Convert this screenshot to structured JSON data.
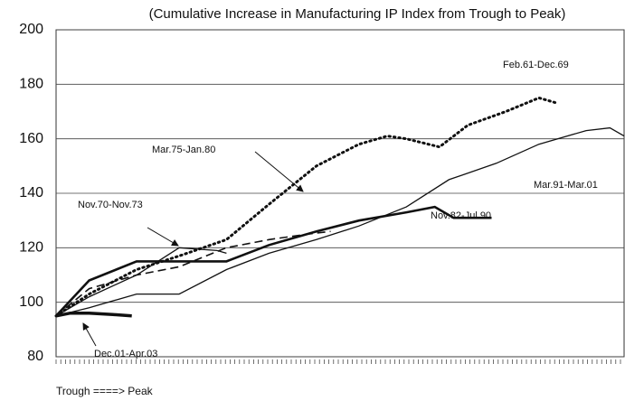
{
  "chart_data": {
    "type": "line",
    "title": "(Cumulative Increase in Manufacturing IP Index from Trough to Peak)",
    "x_label": "Trough ====> Peak",
    "xlim": [
      0,
      120
    ],
    "ylim": [
      80,
      200
    ],
    "yticks": [
      80,
      100,
      120,
      140,
      160,
      180,
      200
    ],
    "grid": true,
    "series": [
      {
        "name": "Feb.61-Dec.69",
        "color": "#111111",
        "style": "dotted",
        "width": 3,
        "x": [
          0,
          7,
          17,
          26,
          36,
          45,
          55,
          64,
          70,
          74,
          81,
          87,
          95,
          102,
          106
        ],
        "values": [
          95,
          103,
          112,
          117,
          123,
          136,
          150,
          158,
          161,
          160,
          157,
          165,
          170,
          175,
          173
        ]
      },
      {
        "name": "Mar.91-Mar.01",
        "color": "#111111",
        "style": "solid",
        "width": 1.3,
        "x": [
          0,
          7,
          17,
          26,
          36,
          45,
          55,
          64,
          74,
          83,
          93,
          102,
          112,
          117,
          120
        ],
        "values": [
          95,
          98,
          103,
          103,
          112,
          118,
          123,
          128,
          135,
          145,
          151,
          158,
          163,
          164,
          161
        ]
      },
      {
        "name": "Nov.82-Jul.90",
        "color": "#111111",
        "style": "solid",
        "width": 2.6,
        "x": [
          0,
          7,
          17,
          26,
          36,
          45,
          55,
          64,
          74,
          80,
          84,
          92
        ],
        "values": [
          95,
          108,
          115,
          115,
          115,
          121,
          126,
          130,
          133,
          135,
          131,
          131
        ]
      },
      {
        "name": "Mar.75-Jan.80",
        "color": "#111111",
        "style": "dashed",
        "width": 1.6,
        "x": [
          0,
          7,
          17,
          26,
          36,
          45,
          53,
          58
        ],
        "values": [
          95,
          105,
          110,
          113,
          120,
          123,
          125,
          126
        ]
      },
      {
        "name": "Nov.70-Nov.73",
        "color": "#111111",
        "style": "solid",
        "width": 1.3,
        "x": [
          0,
          7,
          17,
          26,
          34,
          36
        ],
        "values": [
          95,
          102,
          110,
          120,
          119,
          118
        ]
      },
      {
        "name": "Dec.01-Apr.03",
        "color": "#111111",
        "style": "solid",
        "width": 3.5,
        "x": [
          0,
          3,
          7,
          12,
          16
        ],
        "values": [
          95,
          96,
          96,
          95.5,
          95
        ]
      }
    ]
  }
}
